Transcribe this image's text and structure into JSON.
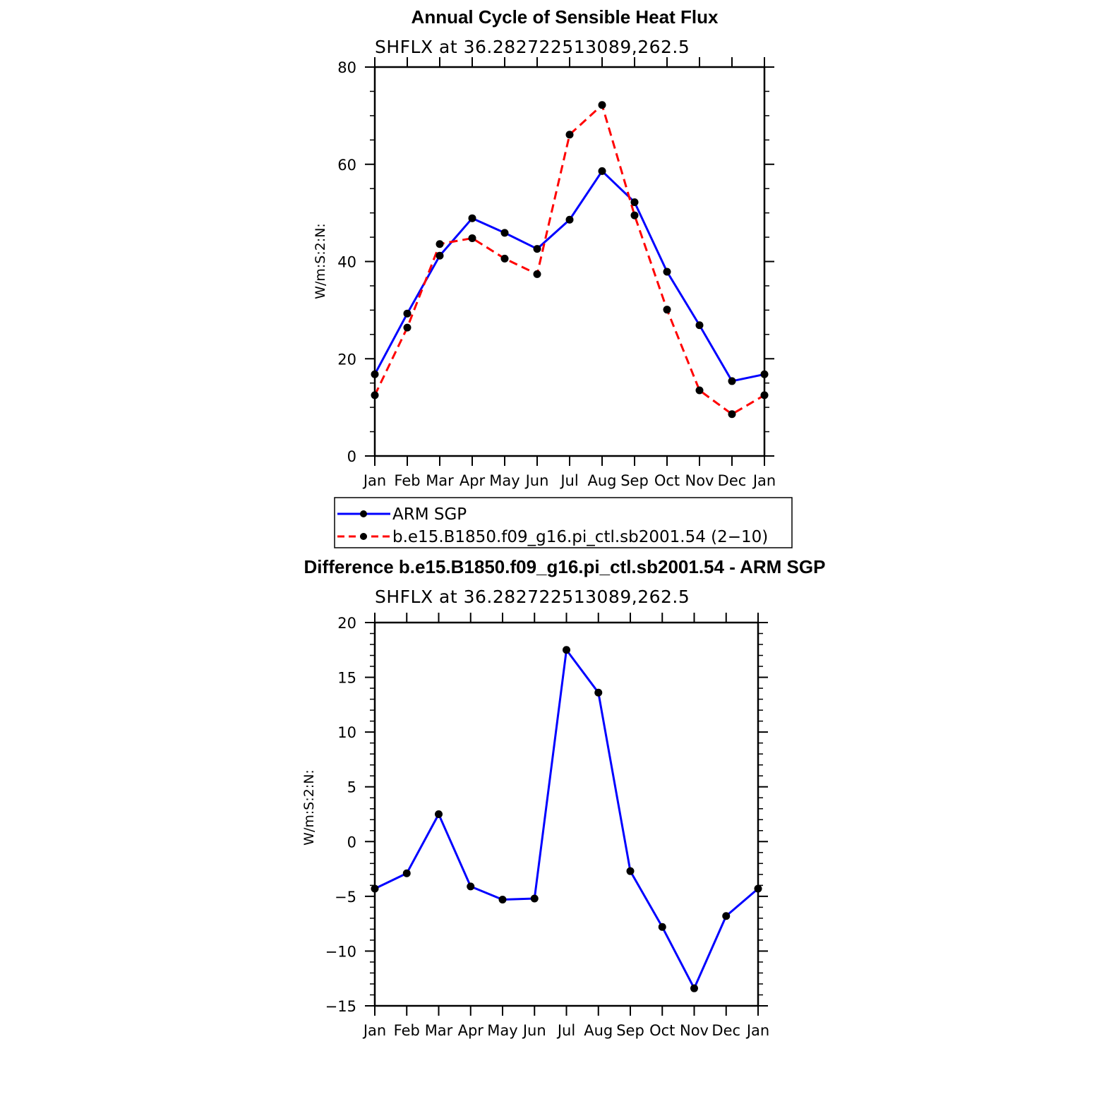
{
  "chart_data": [
    {
      "type": "line",
      "title": "Annual Cycle of Sensible Heat Flux",
      "subtitle": "SHFLX  at  36.282722513089,262.5",
      "xlabel": "",
      "ylabel": "W/m:S:2:N:",
      "categories": [
        "Jan",
        "Feb",
        "Mar",
        "Apr",
        "May",
        "Jun",
        "Jul",
        "Aug",
        "Sep",
        "Oct",
        "Nov",
        "Dec",
        "Jan"
      ],
      "ylim": [
        0,
        80
      ],
      "yticks": [
        0,
        20,
        40,
        60,
        80
      ],
      "series": [
        {
          "name": "ARM SGP",
          "color": "#0000ff",
          "dash": "solid",
          "values": [
            16.8,
            29.3,
            41.2,
            48.9,
            45.9,
            42.6,
            48.6,
            58.6,
            52.2,
            37.9,
            26.9,
            15.4,
            16.8
          ]
        },
        {
          "name": "b.e15.B1850.f09_g16.pi_ctl.sb2001.54 (2−10)",
          "color": "#ff0000",
          "dash": "dashed",
          "values": [
            12.5,
            26.4,
            43.6,
            44.8,
            40.6,
            37.4,
            66.1,
            72.2,
            49.5,
            30.1,
            13.5,
            8.6,
            12.5
          ]
        }
      ],
      "legend": "below"
    },
    {
      "type": "line",
      "title": "Difference b.e15.B1850.f09_g16.pi_ctl.sb2001.54 - ARM SGP",
      "subtitle": "SHFLX  at  36.282722513089,262.5",
      "xlabel": "",
      "ylabel": "W/m:S:2:N:",
      "categories": [
        "Jan",
        "Feb",
        "Mar",
        "Apr",
        "May",
        "Jun",
        "Jul",
        "Aug",
        "Sep",
        "Oct",
        "Nov",
        "Dec",
        "Jan"
      ],
      "ylim": [
        -15,
        20
      ],
      "yticks": [
        -15,
        -10,
        -5,
        0,
        5,
        10,
        15,
        20
      ],
      "series": [
        {
          "name": "Difference",
          "color": "#0000ff",
          "dash": "solid",
          "values": [
            -4.3,
            -2.9,
            2.5,
            -4.1,
            -5.3,
            -5.2,
            17.5,
            13.6,
            -2.7,
            -7.8,
            -13.4,
            -6.8,
            -4.3
          ]
        }
      ]
    }
  ]
}
